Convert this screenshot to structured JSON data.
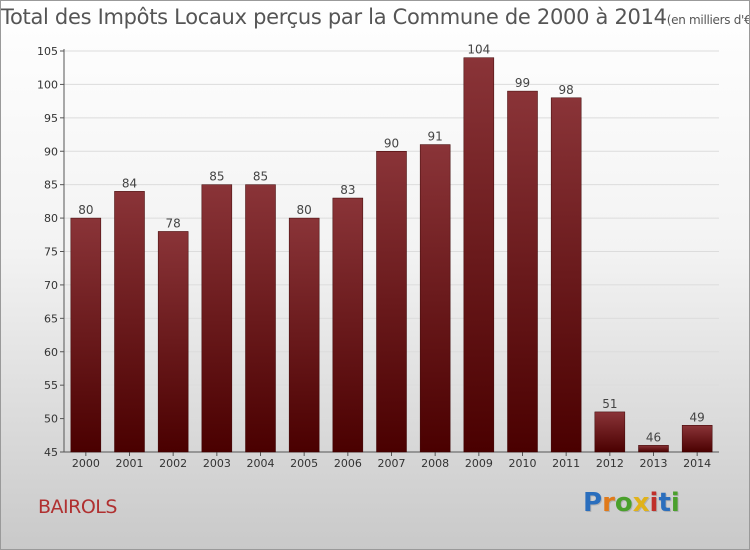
{
  "title": "Total des Impôts Locaux perçus par la Commune de 2000 à 2014",
  "title_unit": "(en milliers d'€)",
  "commune": "BAIROLS",
  "logo": {
    "text": "Proxiti",
    "letter_colors": [
      "#2a6ebd",
      "#e07a1a",
      "#4aa02c",
      "#e0b21a",
      "#c0302a",
      "#2a6ebd",
      "#4aa02c"
    ]
  },
  "chart_data": {
    "type": "bar",
    "categories": [
      "2000",
      "2001",
      "2002",
      "2003",
      "2004",
      "2005",
      "2006",
      "2007",
      "2008",
      "2009",
      "2010",
      "2011",
      "2012",
      "2013",
      "2014"
    ],
    "values": [
      80,
      84,
      78,
      85,
      85,
      80,
      83,
      90,
      91,
      104,
      99,
      98,
      51,
      46,
      49
    ],
    "ylim": [
      45,
      105
    ],
    "yticks": [
      45,
      50,
      55,
      60,
      65,
      70,
      75,
      80,
      85,
      90,
      95,
      100,
      105
    ],
    "grid": true,
    "bar_color_top": "#8a3438",
    "bar_color_bottom": "#4a0000"
  }
}
